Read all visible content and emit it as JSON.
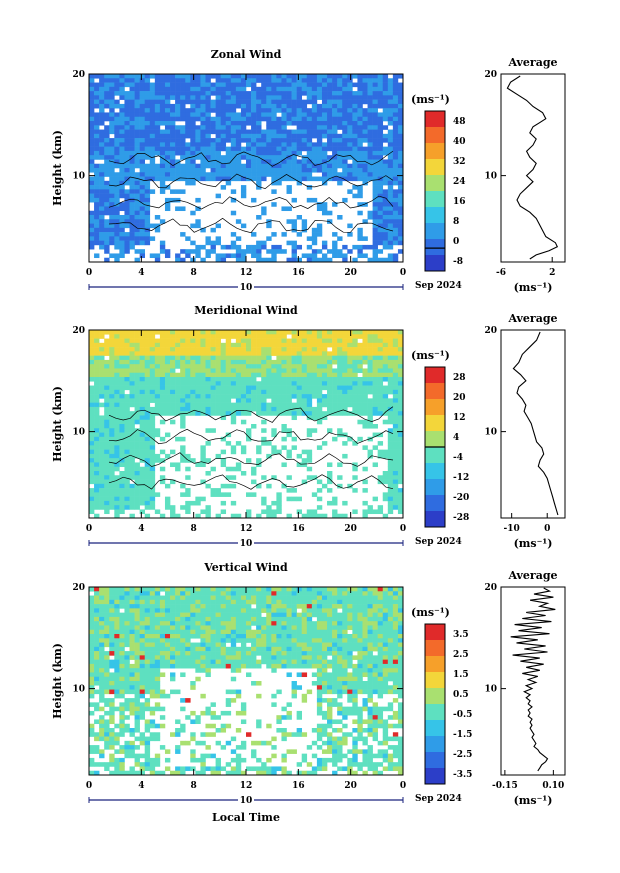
{
  "figure": {
    "x_axis_label": "Local Time",
    "date_label": "Sep 2024",
    "day_label": "10",
    "x_ticks": [
      "0",
      "4",
      "8",
      "12",
      "16",
      "20",
      "0"
    ],
    "y_ticks": [
      "20",
      "10"
    ],
    "y_label": "Height (km)",
    "unit_label": "(ms⁻¹)",
    "avg_title": "Average"
  },
  "chart_data": [
    {
      "type": "heatmap",
      "title": "Zonal Wind",
      "xlabel": "",
      "ylabel": "Height (km)",
      "xlim": [
        0,
        24
      ],
      "ylim": [
        1.5,
        20
      ],
      "colorbar": {
        "unit": "(ms⁻¹)",
        "ticks": [
          "48",
          "40",
          "32",
          "24",
          "16",
          "8",
          "0",
          "-8"
        ],
        "range": [
          -8,
          48
        ]
      },
      "average_profile": {
        "title": "Average",
        "xlabel": "(ms⁻¹)",
        "x_ticks": [
          "-6",
          "2"
        ],
        "xlim": [
          -6,
          4
        ],
        "points": [
          [
            -3.0,
            19.8
          ],
          [
            -4.5,
            19.2
          ],
          [
            -5.0,
            18.6
          ],
          [
            -3.5,
            18.0
          ],
          [
            -2.0,
            17.4
          ],
          [
            -1.0,
            16.8
          ],
          [
            0.5,
            16.2
          ],
          [
            1.0,
            15.6
          ],
          [
            0.0,
            15.2
          ],
          [
            -1.0,
            14.8
          ],
          [
            -1.5,
            14.2
          ],
          [
            -0.5,
            13.6
          ],
          [
            -1.0,
            13.0
          ],
          [
            -2.0,
            12.4
          ],
          [
            -1.5,
            11.8
          ],
          [
            -0.5,
            11.2
          ],
          [
            -1.0,
            10.6
          ],
          [
            -2.0,
            10.0
          ],
          [
            -1.0,
            9.4
          ],
          [
            -2.0,
            8.8
          ],
          [
            -3.0,
            8.2
          ],
          [
            -3.5,
            7.6
          ],
          [
            -3.0,
            7.0
          ],
          [
            -1.5,
            6.4
          ],
          [
            -0.5,
            5.8
          ],
          [
            0.0,
            5.2
          ],
          [
            0.5,
            4.6
          ],
          [
            1.0,
            4.0
          ],
          [
            2.5,
            3.4
          ],
          [
            2.8,
            3.0
          ],
          [
            1.5,
            2.6
          ],
          [
            -0.5,
            2.2
          ],
          [
            -1.5,
            1.8
          ]
        ]
      }
    },
    {
      "type": "heatmap",
      "title": "Meridional Wind",
      "xlabel": "",
      "ylabel": "Height (km)",
      "xlim": [
        0,
        24
      ],
      "ylim": [
        1.5,
        20
      ],
      "colorbar": {
        "unit": "(ms⁻¹)",
        "ticks": [
          "28",
          "20",
          "12",
          "4",
          "-4",
          "-12",
          "-20",
          "-28"
        ],
        "range": [
          -28,
          28
        ]
      },
      "average_profile": {
        "title": "Average",
        "xlabel": "(ms⁻¹)",
        "x_ticks": [
          "-10",
          "0"
        ],
        "xlim": [
          -13,
          5
        ],
        "points": [
          [
            -2.0,
            19.8
          ],
          [
            -3.0,
            19.0
          ],
          [
            -5.0,
            18.3
          ],
          [
            -7.0,
            17.6
          ],
          [
            -8.0,
            16.8
          ],
          [
            -9.5,
            16.2
          ],
          [
            -7.5,
            15.6
          ],
          [
            -6.0,
            15.0
          ],
          [
            -8.0,
            14.4
          ],
          [
            -8.5,
            13.8
          ],
          [
            -7.0,
            13.2
          ],
          [
            -6.0,
            12.6
          ],
          [
            -6.5,
            12.0
          ],
          [
            -5.5,
            11.4
          ],
          [
            -4.5,
            10.8
          ],
          [
            -4.0,
            10.2
          ],
          [
            -3.5,
            9.6
          ],
          [
            -3.0,
            9.0
          ],
          [
            -1.5,
            8.4
          ],
          [
            -1.0,
            7.8
          ],
          [
            -2.0,
            7.2
          ],
          [
            -2.5,
            6.6
          ],
          [
            -1.0,
            6.0
          ],
          [
            0.0,
            5.4
          ],
          [
            0.5,
            4.8
          ],
          [
            1.0,
            4.2
          ],
          [
            1.5,
            3.6
          ],
          [
            2.0,
            3.0
          ],
          [
            2.5,
            2.4
          ],
          [
            3.0,
            1.8
          ]
        ]
      }
    },
    {
      "type": "heatmap",
      "title": "Vertical Wind",
      "xlabel": "Local Time",
      "ylabel": "Height (km)",
      "xlim": [
        0,
        24
      ],
      "ylim": [
        1.5,
        20
      ],
      "colorbar": {
        "unit": "(ms⁻¹)",
        "ticks": [
          "3.5",
          "2.5",
          "1.5",
          "0.5",
          "-0.5",
          "-1.5",
          "-2.5",
          "-3.5"
        ],
        "range": [
          -4,
          4
        ]
      },
      "average_profile": {
        "title": "Average",
        "xlabel": "(ms⁻¹)",
        "x_ticks": [
          "-0.15",
          "0.10"
        ],
        "xlim": [
          -0.17,
          0.16
        ],
        "points": [
          [
            0.05,
            19.9
          ],
          [
            0.08,
            19.6
          ],
          [
            0.0,
            19.3
          ],
          [
            0.1,
            19.0
          ],
          [
            -0.02,
            18.7
          ],
          [
            0.07,
            18.4
          ],
          [
            0.03,
            18.1
          ],
          [
            0.11,
            17.8
          ],
          [
            -0.04,
            17.5
          ],
          [
            0.06,
            17.2
          ],
          [
            -0.06,
            16.9
          ],
          [
            0.09,
            16.6
          ],
          [
            -0.1,
            16.3
          ],
          [
            0.04,
            16.0
          ],
          [
            -0.08,
            15.7
          ],
          [
            0.08,
            15.4
          ],
          [
            -0.12,
            15.1
          ],
          [
            0.02,
            14.8
          ],
          [
            -0.09,
            14.5
          ],
          [
            0.06,
            14.2
          ],
          [
            -0.05,
            13.9
          ],
          [
            0.07,
            13.6
          ],
          [
            -0.11,
            13.3
          ],
          [
            0.03,
            13.0
          ],
          [
            -0.07,
            12.7
          ],
          [
            0.05,
            12.4
          ],
          [
            -0.04,
            12.1
          ],
          [
            0.03,
            11.8
          ],
          [
            -0.06,
            11.5
          ],
          [
            0.02,
            11.2
          ],
          [
            -0.03,
            10.9
          ],
          [
            0.01,
            10.6
          ],
          [
            -0.04,
            10.3
          ],
          [
            -0.01,
            10.0
          ],
          [
            -0.05,
            9.7
          ],
          [
            -0.02,
            9.4
          ],
          [
            -0.04,
            9.1
          ],
          [
            -0.02,
            8.8
          ],
          [
            -0.03,
            8.5
          ],
          [
            -0.01,
            8.2
          ],
          [
            -0.03,
            7.9
          ],
          [
            -0.02,
            7.6
          ],
          [
            -0.03,
            7.3
          ],
          [
            -0.01,
            7.0
          ],
          [
            -0.02,
            6.7
          ],
          [
            -0.01,
            6.4
          ],
          [
            -0.02,
            6.1
          ],
          [
            -0.01,
            5.8
          ],
          [
            0.0,
            5.5
          ],
          [
            -0.01,
            5.2
          ],
          [
            0.0,
            4.9
          ],
          [
            0.01,
            4.6
          ],
          [
            0.0,
            4.3
          ],
          [
            0.02,
            4.0
          ],
          [
            0.03,
            3.7
          ],
          [
            0.05,
            3.4
          ],
          [
            0.07,
            3.1
          ],
          [
            0.06,
            2.8
          ],
          [
            0.04,
            2.5
          ],
          [
            0.03,
            2.2
          ],
          [
            0.02,
            1.9
          ]
        ]
      }
    }
  ]
}
